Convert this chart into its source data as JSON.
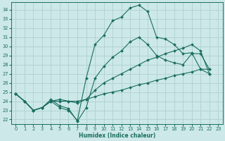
{
  "xlabel": "Humidex (Indice chaleur)",
  "bg_color": "#cce8e8",
  "grid_color": "#b0d0d0",
  "line_color": "#1a6e60",
  "xlim": [
    -0.5,
    23.5
  ],
  "ylim": [
    21.5,
    34.8
  ],
  "yticks": [
    22,
    23,
    24,
    25,
    26,
    27,
    28,
    29,
    30,
    31,
    32,
    33,
    34
  ],
  "xticks": [
    0,
    1,
    2,
    3,
    4,
    5,
    6,
    7,
    8,
    9,
    10,
    11,
    12,
    13,
    14,
    15,
    16,
    17,
    18,
    19,
    20,
    21,
    22,
    23
  ],
  "lines": [
    {
      "x": [
        0,
        1,
        2,
        3,
        4,
        5,
        6,
        7,
        8,
        9,
        10,
        11,
        12,
        13,
        14,
        15,
        16,
        17,
        18,
        19,
        20,
        21,
        22
      ],
      "y": [
        24.8,
        24.0,
        23.0,
        23.3,
        24.0,
        23.3,
        23.0,
        21.9,
        26.5,
        30.2,
        31.2,
        32.8,
        33.2,
        34.2,
        34.5,
        33.8,
        31.0,
        30.8,
        30.2,
        29.2,
        29.3,
        27.5,
        27.5
      ]
    },
    {
      "x": [
        0,
        1,
        2,
        3,
        4,
        5,
        6,
        7,
        8,
        9,
        10,
        11,
        12,
        13,
        14,
        15,
        16,
        17,
        18,
        19,
        20,
        21,
        22
      ],
      "y": [
        24.8,
        24.0,
        23.0,
        23.3,
        24.2,
        23.5,
        23.2,
        21.8,
        23.3,
        26.5,
        27.8,
        28.8,
        29.5,
        30.5,
        31.0,
        30.2,
        29.0,
        28.5,
        28.2,
        28.0,
        29.2,
        29.2,
        27.5
      ]
    },
    {
      "x": [
        0,
        1,
        2,
        3,
        4,
        5,
        6,
        7,
        8,
        9,
        10,
        11,
        12,
        13,
        14,
        15,
        16,
        17,
        18,
        19,
        20,
        21,
        22
      ],
      "y": [
        24.8,
        24.0,
        23.0,
        23.3,
        24.0,
        24.2,
        24.0,
        23.8,
        24.2,
        25.2,
        26.0,
        26.5,
        27.0,
        27.5,
        28.0,
        28.5,
        28.8,
        29.2,
        29.5,
        29.8,
        30.2,
        29.5,
        27.0
      ]
    },
    {
      "x": [
        0,
        1,
        2,
        3,
        4,
        5,
        6,
        7,
        8,
        9,
        10,
        11,
        12,
        13,
        14,
        15,
        16,
        17,
        18,
        19,
        20,
        21,
        22
      ],
      "y": [
        24.8,
        24.0,
        23.0,
        23.3,
        24.0,
        24.0,
        24.0,
        24.0,
        24.2,
        24.5,
        24.8,
        25.0,
        25.2,
        25.5,
        25.8,
        26.0,
        26.3,
        26.5,
        26.8,
        27.0,
        27.2,
        27.5,
        27.0
      ]
    }
  ]
}
